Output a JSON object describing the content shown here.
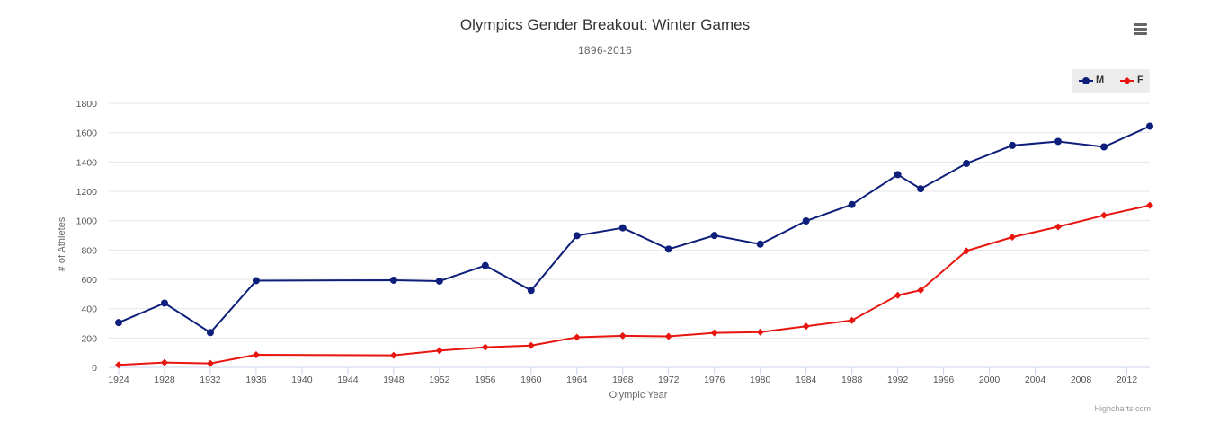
{
  "chart_data": {
    "type": "line",
    "title": "Olympics Gender Breakout: Winter Games",
    "subtitle": "1896-2016",
    "xlabel": "Olympic Year",
    "ylabel": "# of Athletes",
    "xlim": [
      1924,
      2014
    ],
    "ylim": [
      0,
      1800
    ],
    "x_ticks": [
      1924,
      1928,
      1932,
      1936,
      1940,
      1944,
      1948,
      1952,
      1956,
      1960,
      1964,
      1968,
      1972,
      1976,
      1980,
      1984,
      1988,
      1992,
      1996,
      2000,
      2004,
      2008,
      2012
    ],
    "y_ticks": [
      0,
      200,
      400,
      600,
      800,
      1000,
      1200,
      1400,
      1600,
      1800
    ],
    "grid": true,
    "legend_position": "top-right",
    "series": [
      {
        "name": "M",
        "color": "#0d1f7a",
        "marker": "circle",
        "points": [
          [
            1924,
            305
          ],
          [
            1928,
            438
          ],
          [
            1932,
            237
          ],
          [
            1936,
            591
          ],
          [
            1948,
            594
          ],
          [
            1952,
            588
          ],
          [
            1956,
            694
          ],
          [
            1960,
            525
          ],
          [
            1964,
            898
          ],
          [
            1968,
            951
          ],
          [
            1972,
            806
          ],
          [
            1976,
            899
          ],
          [
            1980,
            840
          ],
          [
            1984,
            998
          ],
          [
            1988,
            1110
          ],
          [
            1992,
            1314
          ],
          [
            1994,
            1217
          ],
          [
            1998,
            1390
          ],
          [
            2002,
            1513
          ],
          [
            2006,
            1540
          ],
          [
            2010,
            1503
          ],
          [
            2014,
            1644
          ]
        ]
      },
      {
        "name": "F",
        "color": "#e8150f",
        "marker": "diamond",
        "points": [
          [
            1924,
            17
          ],
          [
            1928,
            33
          ],
          [
            1932,
            27
          ],
          [
            1936,
            86
          ],
          [
            1948,
            82
          ],
          [
            1952,
            114
          ],
          [
            1956,
            137
          ],
          [
            1960,
            149
          ],
          [
            1964,
            205
          ],
          [
            1968,
            215
          ],
          [
            1972,
            211
          ],
          [
            1976,
            235
          ],
          [
            1980,
            240
          ],
          [
            1984,
            280
          ],
          [
            1988,
            320
          ],
          [
            1992,
            491
          ],
          [
            1994,
            526
          ],
          [
            1998,
            794
          ],
          [
            2002,
            888
          ],
          [
            2006,
            958
          ],
          [
            2010,
            1036
          ],
          [
            2014,
            1104
          ]
        ]
      }
    ]
  },
  "credits": "Highcharts.com",
  "menu_icon": "hamburger-menu-icon"
}
